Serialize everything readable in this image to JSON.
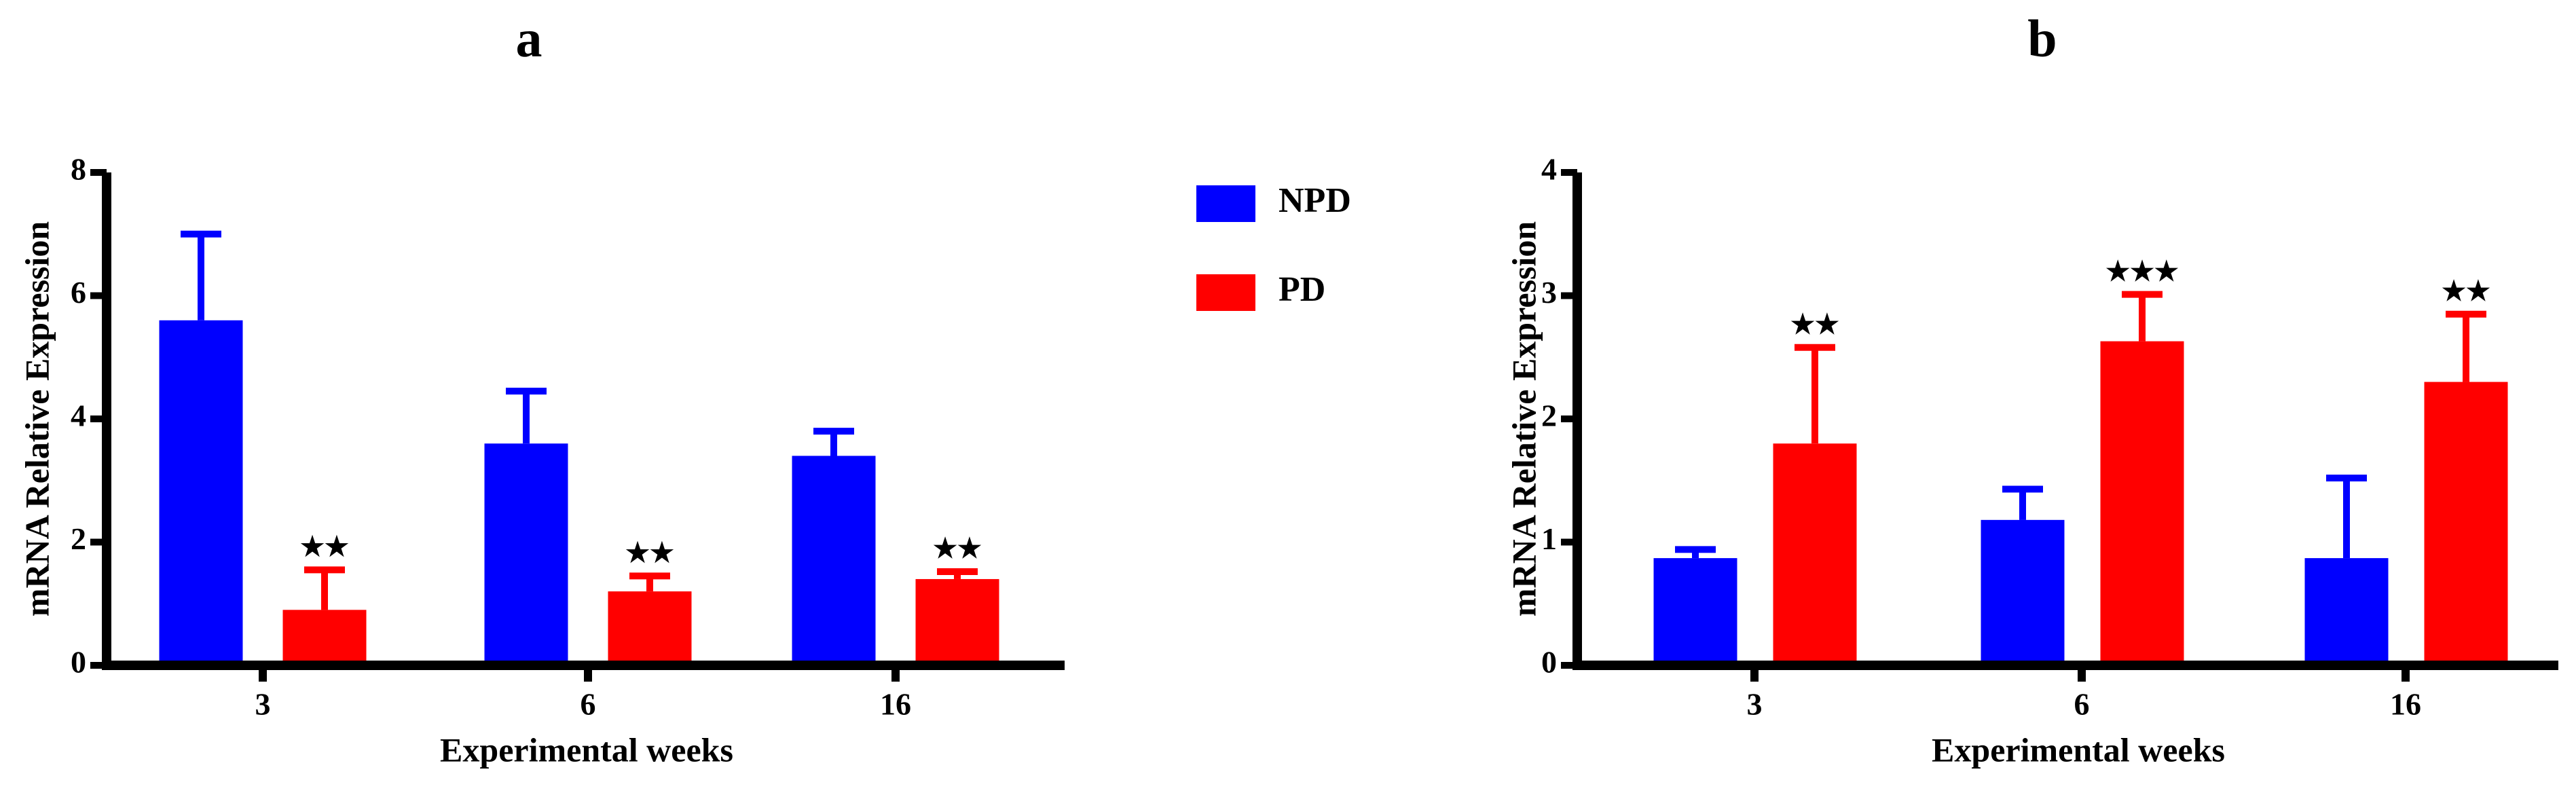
{
  "chart_data": [
    {
      "type": "bar",
      "title": "a",
      "x_label": "Experimental weeks",
      "y_label": "mRNA Relative Expression",
      "categories": [
        "3",
        "6",
        "16"
      ],
      "series": [
        {
          "name": "NPD",
          "color": "#0000ff",
          "values": [
            5.6,
            3.6,
            3.4
          ],
          "errors": [
            1.4,
            0.85,
            0.4
          ]
        },
        {
          "name": "PD",
          "color": "#ff0000",
          "values": [
            0.9,
            1.2,
            1.4
          ],
          "errors": [
            0.65,
            0.25,
            0.12
          ],
          "annotations": [
            "★★",
            "★★",
            "★★"
          ]
        }
      ],
      "ylim": [
        0,
        8
      ],
      "yticks": [
        0,
        2,
        4,
        6,
        8
      ]
    },
    {
      "type": "bar",
      "title": "b",
      "x_label": "Experimental weeks",
      "y_label": "mRNA Relative Expression",
      "categories": [
        "3",
        "6",
        "16"
      ],
      "series": [
        {
          "color": "#0000ff",
          "values": [
            0.87,
            1.18,
            0.87
          ],
          "errors": [
            0.07,
            0.25,
            0.65
          ]
        },
        {
          "color": "#ff0000",
          "values": [
            1.8,
            2.63,
            2.3
          ],
          "errors": [
            0.78,
            0.38,
            0.55
          ],
          "annotations": [
            "★★",
            "★★★",
            "★★"
          ]
        }
      ],
      "ylim": [
        0,
        4
      ],
      "yticks": [
        0,
        1,
        2,
        3,
        4
      ]
    }
  ]
}
